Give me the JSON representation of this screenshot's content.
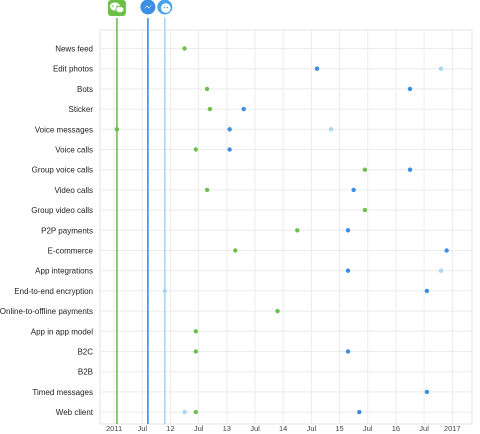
{
  "chart_data": {
    "type": "scatter",
    "x_axis": "time",
    "xlim": [
      2010.75,
      2017.35
    ],
    "x_tick_labels": [
      {
        "value": 2011.0,
        "label": "2011"
      },
      {
        "value": 2011.5,
        "label": "Jul"
      },
      {
        "value": 2012.0,
        "label": "12"
      },
      {
        "value": 2012.5,
        "label": "Jul"
      },
      {
        "value": 2013.0,
        "label": "13"
      },
      {
        "value": 2013.5,
        "label": "Jul"
      },
      {
        "value": 2014.0,
        "label": "14"
      },
      {
        "value": 2014.5,
        "label": "Jul"
      },
      {
        "value": 2015.0,
        "label": "15"
      },
      {
        "value": 2015.5,
        "label": "Jul"
      },
      {
        "value": 2016.0,
        "label": "16"
      },
      {
        "value": 2016.5,
        "label": "Jul"
      },
      {
        "value": 2017.0,
        "label": "2017"
      }
    ],
    "categories": [
      "News feed",
      "Edit photos",
      "Bots",
      "Sticker",
      "Voice messages",
      "Voice calls",
      "Group voice calls",
      "Video calls",
      "Group video calls",
      "P2P payments",
      "E-commerce",
      "App integrations",
      "End-to-end encryption",
      "Online-to-offline payments",
      "App in app model",
      "B2C",
      "B2B",
      "Timed messages",
      "Web client"
    ],
    "series": [
      {
        "icon": "wechat-logo-icon",
        "color": "#6cc04a",
        "launch": 2011.05,
        "points": [
          {
            "category": "News feed",
            "x": 2012.25
          },
          {
            "category": "Bots",
            "x": 2012.65
          },
          {
            "category": "Sticker",
            "x": 2012.7
          },
          {
            "category": "Voice messages",
            "x": 2011.05
          },
          {
            "category": "Voice calls",
            "x": 2012.45
          },
          {
            "category": "Group voice calls",
            "x": 2015.45
          },
          {
            "category": "Video calls",
            "x": 2012.65
          },
          {
            "category": "Group video calls",
            "x": 2015.45
          },
          {
            "category": "P2P payments",
            "x": 2014.25
          },
          {
            "category": "E-commerce",
            "x": 2013.15
          },
          {
            "category": "Online-to-offline payments",
            "x": 2013.9
          },
          {
            "category": "App in app model",
            "x": 2012.45
          },
          {
            "category": "B2C",
            "x": 2012.45
          },
          {
            "category": "Web client",
            "x": 2012.45
          }
        ]
      },
      {
        "icon": "messenger-logo-icon",
        "color": "#3a8ee6",
        "launch": 2011.6,
        "points": [
          {
            "category": "Edit photos",
            "x": 2014.6
          },
          {
            "category": "Bots",
            "x": 2016.25
          },
          {
            "category": "Sticker",
            "x": 2013.3
          },
          {
            "category": "Voice messages",
            "x": 2013.05
          },
          {
            "category": "Voice calls",
            "x": 2013.05
          },
          {
            "category": "Group voice calls",
            "x": 2016.25
          },
          {
            "category": "Video calls",
            "x": 2015.25
          },
          {
            "category": "P2P payments",
            "x": 2015.15
          },
          {
            "category": "E-commerce",
            "x": 2016.9
          },
          {
            "category": "App integrations",
            "x": 2015.15
          },
          {
            "category": "End-to-end encryption",
            "x": 2016.55
          },
          {
            "category": "B2C",
            "x": 2015.15
          },
          {
            "category": "Timed messages",
            "x": 2016.55
          },
          {
            "category": "Web client",
            "x": 2015.35
          }
        ]
      },
      {
        "icon": "messenger-lite-logo-icon",
        "color": "#a9d6f5",
        "launch": 2011.9,
        "points": [
          {
            "category": "Edit photos",
            "x": 2016.8
          },
          {
            "category": "Voice messages",
            "x": 2014.85
          },
          {
            "category": "App integrations",
            "x": 2016.8
          },
          {
            "category": "End-to-end encryption",
            "x": 2011.9
          },
          {
            "category": "Web client",
            "x": 2012.25
          }
        ]
      }
    ],
    "grid": true,
    "legend": "top-left"
  }
}
